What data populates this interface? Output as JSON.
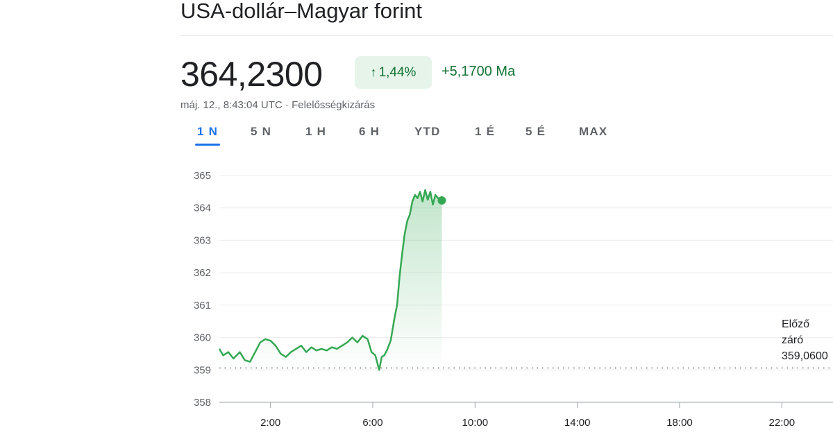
{
  "header": {
    "title": "USA-dollár–Magyar forint",
    "price": "364,2300",
    "change_percent": "1,44%",
    "change_value": "+5,1700 Ma",
    "timestamp": "máj. 12., 8:43:04 UTC",
    "separator": "·",
    "disclaimer": "Felelősségkizárás",
    "arrow_icon": "arrow-up-icon"
  },
  "tabs": [
    {
      "label": "1 N",
      "active": true
    },
    {
      "label": "5 N",
      "active": false
    },
    {
      "label": "1 H",
      "active": false
    },
    {
      "label": "6 H",
      "active": false
    },
    {
      "label": "YTD",
      "active": false
    },
    {
      "label": "1 É",
      "active": false
    },
    {
      "label": "5 É",
      "active": false
    },
    {
      "label": "MAX",
      "active": false
    }
  ],
  "colors": {
    "line": "#34a853",
    "positive_text": "#137333",
    "badge_bg": "#e6f4ea",
    "active_tab": "#1a73e8"
  },
  "chart_data": {
    "type": "line",
    "xlim": [
      0,
      24
    ],
    "ylim": [
      358,
      365
    ],
    "yticks": [
      "365",
      "364",
      "363",
      "362",
      "361",
      "360",
      "359",
      "358"
    ],
    "ytick_values": [
      365,
      364,
      363,
      362,
      361,
      360,
      359,
      358
    ],
    "xticks": [
      "2:00",
      "6:00",
      "10:00",
      "14:00",
      "18:00",
      "22:00"
    ],
    "xtick_values": [
      2,
      6,
      10,
      14,
      18,
      22
    ],
    "grid": true,
    "previous_close": {
      "value": 359.06,
      "label_line1": "Előző",
      "label_line2": "záró",
      "label_value": "359,0600"
    },
    "series": [
      {
        "x": [
          0,
          0.15,
          0.35,
          0.55,
          0.8,
          1.0,
          1.2,
          1.4,
          1.6,
          1.8,
          2.0,
          2.2,
          2.4,
          2.6,
          2.8,
          3.0,
          3.2,
          3.4,
          3.6,
          3.8,
          4.0,
          4.2,
          4.4,
          4.6,
          4.8,
          5.0,
          5.2,
          5.4,
          5.6,
          5.8,
          5.95,
          6.1,
          6.25,
          6.35,
          6.45,
          6.55,
          6.7,
          6.85,
          6.95,
          7.05,
          7.15,
          7.25,
          7.35,
          7.45,
          7.55,
          7.65,
          7.75,
          7.85,
          7.95,
          8.05,
          8.15,
          8.25,
          8.35,
          8.45,
          8.55,
          8.7
        ],
        "y": [
          359.65,
          359.45,
          359.55,
          359.35,
          359.55,
          359.3,
          359.25,
          359.55,
          359.85,
          359.95,
          359.9,
          359.75,
          359.5,
          359.4,
          359.55,
          359.65,
          359.75,
          359.55,
          359.7,
          359.6,
          359.65,
          359.6,
          359.7,
          359.65,
          359.75,
          359.85,
          360.0,
          359.85,
          360.05,
          359.95,
          359.55,
          359.45,
          359.0,
          359.4,
          359.45,
          359.6,
          359.9,
          360.6,
          361.0,
          361.9,
          362.6,
          363.2,
          363.6,
          363.8,
          364.2,
          364.4,
          364.3,
          364.5,
          364.2,
          364.55,
          364.25,
          364.5,
          364.1,
          364.4,
          364.3,
          364.23
        ]
      }
    ]
  }
}
